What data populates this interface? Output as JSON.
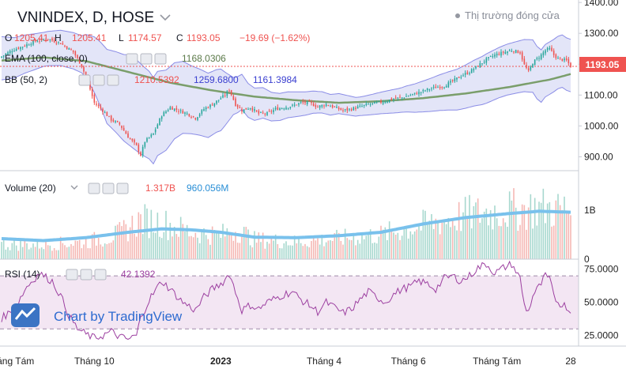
{
  "header": {
    "symbol": "VNINDEX, D, HOSE",
    "market_status": "Thị trường đóng cửa",
    "ohlc": {
      "o_label": "O",
      "o": "1205.41",
      "h_label": "H",
      "h": "1205.41",
      "l_label": "L",
      "l": "1174.57",
      "c_label": "C",
      "c": "1193.05",
      "change": "−19.69 (−1.62%)"
    }
  },
  "indicators": {
    "ema": {
      "label": "EMA (100, close, 0)",
      "value": "1168.0306"
    },
    "bb": {
      "label": "BB (50, 2)",
      "basis": "1210.5392",
      "upper": "1259.6800",
      "lower": "1161.3984"
    },
    "volume": {
      "label": "Volume (20)",
      "value": "1.317B",
      "ma": "960.056M"
    },
    "rsi": {
      "label": "RSI (14)",
      "value": "42.1392"
    }
  },
  "watermark": "Chart by TradingView",
  "last_price_tag": "1193.05",
  "colors": {
    "up": "#26a69a",
    "down": "#ef5350",
    "ema": "#7a9e6b",
    "bb_band": "#8a8ce6",
    "bb_fill": "#e3e5f8",
    "vol_ma": "#79c1ec",
    "rsi_line": "#9c3fa0",
    "rsi_fill": "#f3e6f3"
  },
  "chart_data": {
    "type": "candlestick",
    "title": "VNINDEX, D, HOSE",
    "price_axis": {
      "ticks": [
        900,
        1000,
        1100,
        1200,
        1300,
        1400
      ],
      "tick_labels": [
        "900.00",
        "1000.00",
        "1100.00",
        "1200.00",
        "1300.00",
        "1400.00"
      ],
      "ylim": [
        855,
        1408
      ]
    },
    "volume_axis": {
      "ticks": [
        0,
        1
      ],
      "tick_labels": [
        "0",
        "1B"
      ],
      "ylim": [
        0,
        1.68
      ]
    },
    "rsi_axis": {
      "ticks": [
        25,
        50,
        75
      ],
      "tick_labels": [
        "25.0000",
        "50.0000",
        "75.0000"
      ],
      "ylim": [
        17,
        82
      ],
      "bands": [
        30,
        70
      ]
    },
    "x_axis": {
      "labels": [
        "Tháng Tám",
        "Tháng 10",
        "2023",
        "Tháng 4",
        "Tháng 6",
        "Tháng Tám",
        "28"
      ],
      "label_index": [
        4,
        44,
        104,
        153,
        193,
        235,
        270
      ]
    },
    "close_anchors": [
      [
        0,
        1225
      ],
      [
        5,
        1245
      ],
      [
        10,
        1258
      ],
      [
        16,
        1275
      ],
      [
        22,
        1282
      ],
      [
        28,
        1268
      ],
      [
        34,
        1240
      ],
      [
        38,
        1195
      ],
      [
        41,
        1140
      ],
      [
        44,
        1075
      ],
      [
        48,
        1050
      ],
      [
        52,
        1020
      ],
      [
        56,
        1005
      ],
      [
        60,
        965
      ],
      [
        64,
        935
      ],
      [
        66,
        905
      ],
      [
        68,
        950
      ],
      [
        72,
        975
      ],
      [
        76,
        1035
      ],
      [
        80,
        1060
      ],
      [
        84,
        1050
      ],
      [
        88,
        1040
      ],
      [
        92,
        1025
      ],
      [
        96,
        1055
      ],
      [
        100,
        1070
      ],
      [
        104,
        1090
      ],
      [
        106,
        1100
      ],
      [
        108,
        1118
      ],
      [
        111,
        1070
      ],
      [
        114,
        1050
      ],
      [
        118,
        1060
      ],
      [
        122,
        1040
      ],
      [
        126,
        1040
      ],
      [
        130,
        1055
      ],
      [
        134,
        1060
      ],
      [
        138,
        1065
      ],
      [
        142,
        1075
      ],
      [
        146,
        1075
      ],
      [
        150,
        1062
      ],
      [
        154,
        1070
      ],
      [
        158,
        1060
      ],
      [
        162,
        1050
      ],
      [
        166,
        1055
      ],
      [
        170,
        1062
      ],
      [
        174,
        1070
      ],
      [
        178,
        1075
      ],
      [
        182,
        1080
      ],
      [
        186,
        1088
      ],
      [
        190,
        1092
      ],
      [
        194,
        1100
      ],
      [
        198,
        1108
      ],
      [
        202,
        1118
      ],
      [
        206,
        1125
      ],
      [
        210,
        1130
      ],
      [
        214,
        1145
      ],
      [
        218,
        1162
      ],
      [
        222,
        1175
      ],
      [
        226,
        1195
      ],
      [
        230,
        1215
      ],
      [
        234,
        1230
      ],
      [
        238,
        1238
      ],
      [
        242,
        1245
      ],
      [
        246,
        1238
      ],
      [
        248,
        1198
      ],
      [
        250,
        1175
      ],
      [
        252,
        1205
      ],
      [
        256,
        1230
      ],
      [
        258,
        1245
      ],
      [
        260,
        1250
      ],
      [
        262,
        1230
      ],
      [
        264,
        1218
      ],
      [
        268,
        1212
      ],
      [
        270,
        1193
      ]
    ],
    "ema_anchors": [
      [
        0,
        1212
      ],
      [
        20,
        1222
      ],
      [
        40,
        1210
      ],
      [
        60,
        1175
      ],
      [
        80,
        1140
      ],
      [
        100,
        1115
      ],
      [
        120,
        1095
      ],
      [
        140,
        1083
      ],
      [
        160,
        1075
      ],
      [
        180,
        1080
      ],
      [
        200,
        1090
      ],
      [
        220,
        1105
      ],
      [
        240,
        1125
      ],
      [
        260,
        1150
      ],
      [
        270,
        1168
      ]
    ],
    "rsi_anchors": [
      [
        0,
        38
      ],
      [
        6,
        45
      ],
      [
        12,
        62
      ],
      [
        18,
        72
      ],
      [
        24,
        66
      ],
      [
        28,
        55
      ],
      [
        32,
        40
      ],
      [
        36,
        30
      ],
      [
        40,
        26
      ],
      [
        44,
        23
      ],
      [
        48,
        25
      ],
      [
        52,
        28
      ],
      [
        56,
        24
      ],
      [
        60,
        22
      ],
      [
        64,
        25
      ],
      [
        66,
        38
      ],
      [
        70,
        52
      ],
      [
        76,
        66
      ],
      [
        80,
        60
      ],
      [
        86,
        50
      ],
      [
        92,
        44
      ],
      [
        96,
        54
      ],
      [
        100,
        60
      ],
      [
        104,
        64
      ],
      [
        106,
        67
      ],
      [
        108,
        72
      ],
      [
        111,
        58
      ],
      [
        114,
        44
      ],
      [
        118,
        48
      ],
      [
        122,
        45
      ],
      [
        126,
        50
      ],
      [
        130,
        53
      ],
      [
        134,
        56
      ],
      [
        138,
        58
      ],
      [
        142,
        52
      ],
      [
        146,
        48
      ],
      [
        150,
        43
      ],
      [
        154,
        50
      ],
      [
        158,
        46
      ],
      [
        162,
        42
      ],
      [
        166,
        45
      ],
      [
        170,
        52
      ],
      [
        174,
        58
      ],
      [
        178,
        54
      ],
      [
        182,
        50
      ],
      [
        186,
        56
      ],
      [
        190,
        60
      ],
      [
        194,
        62
      ],
      [
        198,
        66
      ],
      [
        202,
        64
      ],
      [
        206,
        60
      ],
      [
        210,
        68
      ],
      [
        214,
        70
      ],
      [
        218,
        66
      ],
      [
        222,
        70
      ],
      [
        226,
        76
      ],
      [
        230,
        79
      ],
      [
        234,
        72
      ],
      [
        238,
        76
      ],
      [
        242,
        79
      ],
      [
        246,
        68
      ],
      [
        248,
        48
      ],
      [
        250,
        43
      ],
      [
        252,
        55
      ],
      [
        256,
        64
      ],
      [
        258,
        70
      ],
      [
        260,
        67
      ],
      [
        262,
        55
      ],
      [
        264,
        50
      ],
      [
        268,
        47
      ],
      [
        270,
        42
      ]
    ],
    "volume_ma_anchors": [
      [
        0,
        0.42
      ],
      [
        20,
        0.38
      ],
      [
        40,
        0.44
      ],
      [
        60,
        0.55
      ],
      [
        76,
        0.62
      ],
      [
        90,
        0.6
      ],
      [
        104,
        0.55
      ],
      [
        120,
        0.45
      ],
      [
        140,
        0.44
      ],
      [
        160,
        0.48
      ],
      [
        180,
        0.55
      ],
      [
        200,
        0.72
      ],
      [
        220,
        0.85
      ],
      [
        240,
        0.93
      ],
      [
        255,
        0.98
      ],
      [
        270,
        0.96
      ]
    ],
    "volume_level_anchors": [
      [
        0,
        0.3
      ],
      [
        20,
        0.3
      ],
      [
        40,
        0.35
      ],
      [
        55,
        0.5
      ],
      [
        66,
        0.8
      ],
      [
        76,
        0.75
      ],
      [
        90,
        0.55
      ],
      [
        104,
        0.5
      ],
      [
        112,
        0.6
      ],
      [
        120,
        0.4
      ],
      [
        140,
        0.35
      ],
      [
        160,
        0.42
      ],
      [
        180,
        0.5
      ],
      [
        200,
        0.7
      ],
      [
        220,
        0.9
      ],
      [
        240,
        1.0
      ],
      [
        255,
        1.05
      ],
      [
        270,
        1.0
      ]
    ],
    "bb_width_anchors": [
      [
        0,
        70
      ],
      [
        20,
        55
      ],
      [
        38,
        60
      ],
      [
        50,
        120
      ],
      [
        62,
        150
      ],
      [
        72,
        140
      ],
      [
        90,
        110
      ],
      [
        104,
        100
      ],
      [
        110,
        60
      ],
      [
        130,
        45
      ],
      [
        150,
        35
      ],
      [
        170,
        30
      ],
      [
        190,
        40
      ],
      [
        210,
        60
      ],
      [
        230,
        80
      ],
      [
        250,
        85
      ],
      [
        270,
        85
      ]
    ]
  }
}
